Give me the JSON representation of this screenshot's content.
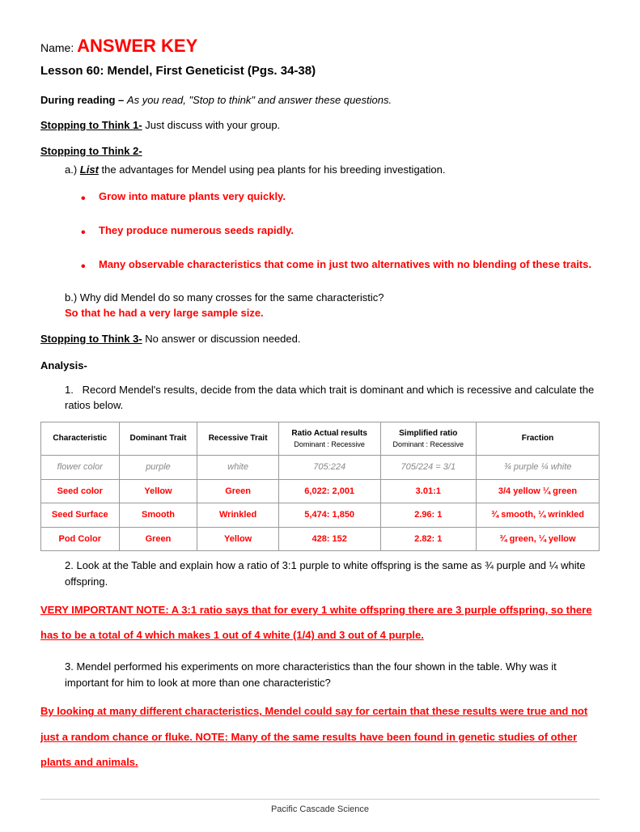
{
  "header": {
    "name_label": "Name:",
    "answer_key": "ANSWER KEY",
    "lesson_title": "Lesson 60:  Mendel, First Geneticist (Pgs. 34-38)"
  },
  "during_reading": {
    "label": "During reading – ",
    "instruction": "As you read, \"Stop to think\" and answer these questions."
  },
  "st1": {
    "heading": "Stopping to Think 1-",
    "text": " Just discuss with your group."
  },
  "st2": {
    "heading": "Stopping to Think 2-",
    "a_prefix": "a.)  ",
    "a_list_word": "List",
    "a_text": " the advantages for Mendel using pea plants for his breeding investigation.",
    "bullets": [
      "Grow into mature plants very quickly.",
      "They produce numerous seeds rapidly.",
      "Many observable characteristics that come in just two alternatives with no blending of these traits."
    ],
    "b_prefix": "b.)  ",
    "b_text": "Why did Mendel do so many crosses for the same characteristic?",
    "b_answer": "So that he had a very large sample size."
  },
  "st3": {
    "heading": "Stopping to Think 3-",
    "text": "  No answer or discussion needed."
  },
  "analysis": {
    "heading": "Analysis-",
    "q1_num": "1.",
    "q1_text": "Record Mendel's results, decide from the data which trait is dominant and which is recessive and calculate the ratios below.",
    "q2_num": "2.",
    "q2_text": "Look at the Table and explain how a ratio of 3:1 purple to white offspring is the same as ¾ purple and ¼ white offspring.",
    "q2_answer": "VERY IMPORTANT NOTE:  A 3:1 ratio says that for every 1 white offspring there are 3 purple offspring, so there has to be a total of 4 which makes 1 out of 4 white (1/4) and 3 out of 4 purple.",
    "q3_num": "3.",
    "q3_text": "Mendel performed his experiments on more characteristics than the four shown in the table. Why was it important for him to look at more than one characteristic?",
    "q3_answer_1": "By looking at many different characteristics, Mendel could say for certain that these results were true and not just a random chance or fluke.  ",
    "q3_answer_2": "NOTE:  Many of the same results have been found in genetic studies of other plants and animals."
  },
  "table": {
    "columns": [
      {
        "label": "Characteristic",
        "width": "15%"
      },
      {
        "label": "Dominant Trait",
        "width": "12%"
      },
      {
        "label": "Recessive Trait",
        "width": "12%"
      },
      {
        "label": "Ratio Actual results",
        "sub": "Dominant : Recessive",
        "width": "20%"
      },
      {
        "label": "Simplified ratio",
        "sub": "Dominant : Recessive",
        "width": "18%"
      },
      {
        "label": "Fraction",
        "width": "23%"
      }
    ],
    "example_row": {
      "characteristic": "flower color",
      "dominant": "purple",
      "recessive": "white",
      "ratio": "705:224",
      "simplified": "705/224 = 3/1",
      "fraction": "¾ purple  ¼ white"
    },
    "rows": [
      {
        "characteristic": "Seed color",
        "dominant": "Yellow",
        "recessive": "Green",
        "ratio": "6,022: 2,001",
        "simplified": "3.01:1",
        "fraction": "3/4 yellow ¼ green"
      },
      {
        "characteristic": "Seed Surface",
        "dominant": "Smooth",
        "recessive": "Wrinkled",
        "ratio": "5,474: 1,850",
        "simplified": "2.96: 1",
        "fraction": "¾ smooth, ¼ wrinkled"
      },
      {
        "characteristic": "Pod Color",
        "dominant": "Green",
        "recessive": "Yellow",
        "ratio": "428: 152",
        "simplified": "2.82: 1",
        "fraction": "¾ green, ¼ yellow"
      }
    ],
    "header_bg": "#ffffff",
    "border_color": "#999999",
    "answer_color": "#ff0000",
    "example_color": "#888888"
  },
  "footer": {
    "text": "Pacific Cascade Science"
  }
}
